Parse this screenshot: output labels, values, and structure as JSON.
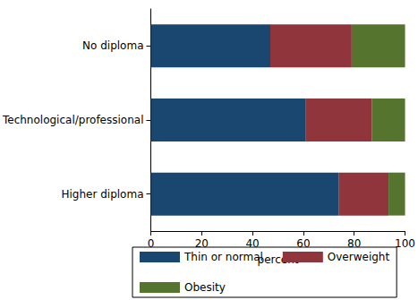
{
  "chart_data": {
    "type": "bar",
    "orientation": "horizontal",
    "stacked": true,
    "categories": [
      "No diploma",
      "Technological/professional",
      "Higher diploma"
    ],
    "xlabel": "percent",
    "xlim": [
      0,
      100
    ],
    "xticks": [
      0,
      20,
      40,
      60,
      80,
      100
    ],
    "grid": false,
    "legend": "bottom",
    "series": [
      {
        "name": "Thin or normal",
        "color": "#1a476f",
        "values": [
          47,
          61,
          74
        ]
      },
      {
        "name": "Overweight",
        "color": "#90353b",
        "values": [
          32,
          26,
          19.5
        ]
      },
      {
        "name": "Obesity",
        "color": "#55752f",
        "values": [
          21,
          13,
          6.5
        ]
      }
    ]
  }
}
